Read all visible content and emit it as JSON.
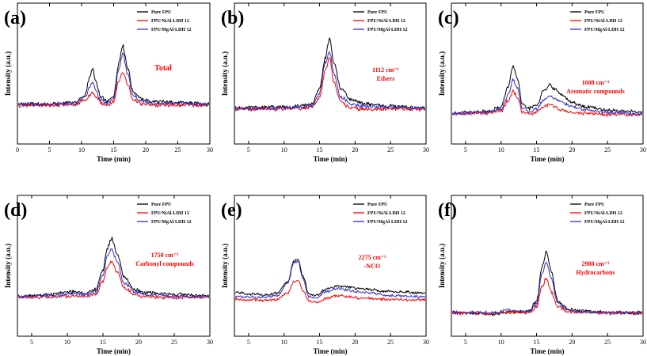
{
  "colors": {
    "pure": "#000000",
    "niai": "#ff0000",
    "mgai": "#3333cc",
    "annotation": "#ff0000"
  },
  "chart_data": [
    {
      "type": "line",
      "panel": "(a)",
      "xlabel": "Time (min)",
      "ylabel": "Intensity (a.u.)",
      "xlim": [
        0,
        30
      ],
      "xticks": [
        "0",
        "5",
        "10",
        "15",
        "20",
        "25",
        "30"
      ],
      "annotation": [
        "Total"
      ],
      "legend": [
        "Pure FPU",
        "FPU/NiAl-LDH 12",
        "FPU/MgAl-LDH 12"
      ],
      "series": [
        {
          "name": "Pure FPU",
          "color": "#000000",
          "x": [
            0,
            5,
            9,
            10.5,
            11.3,
            11.7,
            12.2,
            13,
            14,
            15,
            15.8,
            16.4,
            17.2,
            18,
            19.5,
            21,
            25,
            30
          ],
          "y": [
            0.01,
            0.01,
            0.03,
            0.1,
            0.3,
            0.4,
            0.25,
            0.08,
            0.04,
            0.1,
            0.45,
            0.65,
            0.4,
            0.15,
            0.06,
            0.04,
            0.03,
            0.01
          ]
        },
        {
          "name": "FPU/NiAl-LDH 12",
          "color": "#ff0000",
          "x": [
            0,
            5,
            9,
            10.5,
            11.3,
            11.7,
            12.2,
            13,
            14,
            15,
            15.8,
            16.4,
            17.2,
            18,
            19.5,
            21,
            25,
            30
          ],
          "y": [
            0.0,
            0.0,
            0.01,
            0.05,
            0.11,
            0.14,
            0.09,
            0.02,
            0.0,
            0.04,
            0.25,
            0.36,
            0.22,
            0.06,
            0.01,
            0.0,
            0.0,
            0.0
          ]
        },
        {
          "name": "FPU/MgAl-LDH 12",
          "color": "#3333cc",
          "x": [
            0,
            5,
            9,
            10.5,
            11.3,
            11.7,
            12.2,
            13,
            14,
            15,
            15.8,
            16.4,
            17.2,
            18,
            19.5,
            21,
            25,
            30
          ],
          "y": [
            0.01,
            0.01,
            0.02,
            0.08,
            0.2,
            0.25,
            0.16,
            0.05,
            0.02,
            0.07,
            0.38,
            0.55,
            0.33,
            0.1,
            0.04,
            0.02,
            0.02,
            0.01
          ]
        }
      ]
    },
    {
      "type": "line",
      "panel": "(b)",
      "xlabel": "Time (min)",
      "ylabel": "Intensity (a.u.)",
      "xlim": [
        3,
        30
      ],
      "xticks": [
        "5",
        "10",
        "15",
        "20",
        "25",
        "30"
      ],
      "annotation": [
        "1112 cm⁻¹",
        "Ethers"
      ],
      "legend": [
        "Pure FPU",
        "FPU/NiAl-LDH 12",
        "FPU/MgAl-LDH 12"
      ],
      "series": [
        {
          "name": "Pure FPU",
          "color": "#000000",
          "x": [
            3,
            8,
            12,
            14,
            15,
            15.8,
            16.4,
            17,
            18,
            19.5,
            21,
            25,
            30
          ],
          "y": [
            0.01,
            0.02,
            0.03,
            0.06,
            0.22,
            0.55,
            0.75,
            0.5,
            0.22,
            0.1,
            0.06,
            0.03,
            0.01
          ]
        },
        {
          "name": "FPU/NiAl-LDH 12",
          "color": "#ff0000",
          "x": [
            3,
            8,
            12,
            14,
            15,
            15.8,
            16.4,
            17,
            18,
            19.5,
            21,
            25,
            30
          ],
          "y": [
            0.0,
            0.0,
            0.01,
            0.02,
            0.12,
            0.42,
            0.55,
            0.3,
            0.07,
            0.01,
            0.0,
            0.0,
            0.0
          ]
        },
        {
          "name": "FPU/MgAl-LDH 12",
          "color": "#3333cc",
          "x": [
            3,
            8,
            12,
            14,
            15,
            15.8,
            16.4,
            17,
            18,
            19.5,
            21,
            25,
            30
          ],
          "y": [
            0.01,
            0.01,
            0.02,
            0.04,
            0.17,
            0.5,
            0.62,
            0.38,
            0.13,
            0.05,
            0.03,
            0.02,
            0.01
          ]
        }
      ]
    },
    {
      "type": "line",
      "panel": "(c)",
      "xlabel": "Time (min)",
      "ylabel": "Intensity (a.u.)",
      "xlim": [
        3,
        30
      ],
      "xticks": [
        "5",
        "10",
        "15",
        "20",
        "25",
        "30"
      ],
      "annotation": [
        "1608 cm⁻¹",
        "Aromatic compounds"
      ],
      "legend": [
        "Pure FPU",
        "FPU/NiAl-LDH 12",
        "FPU/MgAl-LDH 12"
      ],
      "series": [
        {
          "name": "Pure FPU",
          "color": "#000000",
          "x": [
            3,
            8,
            10,
            11,
            11.7,
            12.3,
            13,
            14,
            15,
            16,
            16.8,
            17.5,
            18.5,
            20,
            22,
            25,
            30
          ],
          "y": [
            0.02,
            0.04,
            0.1,
            0.35,
            0.62,
            0.45,
            0.12,
            0.08,
            0.12,
            0.3,
            0.38,
            0.33,
            0.25,
            0.15,
            0.1,
            0.06,
            0.03
          ]
        },
        {
          "name": "FPU/NiAl-LDH 12",
          "color": "#ff0000",
          "x": [
            3,
            8,
            10,
            11,
            11.7,
            12.3,
            13,
            14,
            15,
            16,
            16.8,
            17.5,
            18.5,
            20,
            22,
            25,
            30
          ],
          "y": [
            0.01,
            0.02,
            0.05,
            0.18,
            0.3,
            0.22,
            0.04,
            0.0,
            0.03,
            0.1,
            0.13,
            0.1,
            0.06,
            0.03,
            0.02,
            0.0,
            0.0
          ]
        },
        {
          "name": "FPU/MgAl-LDH 12",
          "color": "#3333cc",
          "x": [
            3,
            8,
            10,
            11,
            11.7,
            12.3,
            13,
            14,
            15,
            16,
            16.8,
            17.5,
            18.5,
            20,
            22,
            25,
            30
          ],
          "y": [
            0.01,
            0.03,
            0.07,
            0.25,
            0.45,
            0.33,
            0.08,
            0.04,
            0.07,
            0.19,
            0.24,
            0.21,
            0.16,
            0.1,
            0.06,
            0.03,
            0.01
          ]
        }
      ]
    },
    {
      "type": "line",
      "panel": "(d)",
      "xlabel": "Time (min)",
      "ylabel": "Intensity (a.u.)",
      "xlim": [
        3,
        30
      ],
      "xticks": [
        "5",
        "10",
        "15",
        "20",
        "25",
        "30"
      ],
      "annotation": [
        "1750 cm⁻¹",
        "Carbonyl compounds"
      ],
      "legend": [
        "Pure FPU",
        "FPU/NiAl-LDH 12",
        "FPU/MgAl-LDH 12"
      ],
      "series": [
        {
          "name": "Pure FPU",
          "color": "#000000",
          "x": [
            3,
            7,
            9,
            11,
            12.5,
            14,
            15,
            15.6,
            16.2,
            17,
            18,
            19.5,
            21,
            25,
            30
          ],
          "y": [
            0.02,
            0.03,
            0.06,
            0.08,
            0.05,
            0.1,
            0.35,
            0.62,
            0.75,
            0.55,
            0.25,
            0.1,
            0.06,
            0.04,
            0.02
          ]
        },
        {
          "name": "FPU/NiAl-LDH 12",
          "color": "#ff0000",
          "x": [
            3,
            7,
            9,
            11,
            12.5,
            14,
            15,
            15.6,
            16.2,
            17,
            18,
            19.5,
            21,
            25,
            30
          ],
          "y": [
            0.0,
            0.0,
            0.01,
            0.02,
            0.01,
            0.04,
            0.2,
            0.38,
            0.45,
            0.32,
            0.12,
            0.03,
            0.01,
            0.0,
            0.0
          ]
        },
        {
          "name": "FPU/MgAl-LDH 12",
          "color": "#3333cc",
          "x": [
            3,
            7,
            9,
            11,
            12.5,
            14,
            15,
            15.6,
            16.2,
            17,
            18,
            19.5,
            21,
            25,
            30
          ],
          "y": [
            0.01,
            0.02,
            0.03,
            0.05,
            0.03,
            0.07,
            0.28,
            0.52,
            0.62,
            0.44,
            0.18,
            0.07,
            0.03,
            0.02,
            0.01
          ]
        }
      ]
    },
    {
      "type": "line",
      "panel": "(e)",
      "xlabel": "Time (min)",
      "ylabel": "Intensity (a.u.)",
      "xlim": [
        3,
        30
      ],
      "xticks": [
        "5",
        "10",
        "15",
        "20",
        "25",
        "30"
      ],
      "annotation": [
        "2275 cm⁻¹",
        "-NCO"
      ],
      "legend": [
        "Pure FPU",
        "FPU/NiAl-LDH 12",
        "FPU/MgAl-LDH 12"
      ],
      "series": [
        {
          "name": "Pure FPU",
          "color": "#000000",
          "x": [
            3,
            7,
            9,
            10.5,
            11.4,
            12,
            12.6,
            13.5,
            14.5,
            16,
            17.5,
            19,
            21,
            25,
            30
          ],
          "y": [
            0.14,
            0.11,
            0.13,
            0.3,
            0.62,
            0.64,
            0.4,
            0.12,
            0.1,
            0.2,
            0.24,
            0.22,
            0.2,
            0.16,
            0.14
          ]
        },
        {
          "name": "FPU/NiAl-LDH 12",
          "color": "#ff0000",
          "x": [
            3,
            7,
            9,
            10.5,
            11.4,
            12,
            12.6,
            13.5,
            14.5,
            16,
            17.5,
            19,
            21,
            25,
            30
          ],
          "y": [
            0.04,
            0.03,
            0.04,
            0.14,
            0.3,
            0.32,
            0.18,
            0.02,
            0.0,
            0.06,
            0.1,
            0.08,
            0.06,
            0.04,
            0.03
          ]
        },
        {
          "name": "FPU/MgAl-LDH 12",
          "color": "#3333cc",
          "x": [
            3,
            7,
            9,
            10.5,
            11.4,
            12,
            12.6,
            13.5,
            14.5,
            16,
            17.5,
            19,
            21,
            25,
            30
          ],
          "y": [
            0.08,
            0.07,
            0.09,
            0.28,
            0.6,
            0.6,
            0.36,
            0.08,
            0.06,
            0.16,
            0.2,
            0.18,
            0.15,
            0.1,
            0.08
          ]
        }
      ]
    },
    {
      "type": "line",
      "panel": "(f)",
      "xlabel": "Time (min)",
      "ylabel": "Intensity (a.u.)",
      "xlim": [
        3,
        30
      ],
      "xticks": [
        "5",
        "10",
        "15",
        "20",
        "25",
        "30"
      ],
      "annotation": [
        "2980 cm⁻¹",
        "Hydrocarbons"
      ],
      "legend": [
        "Pure FPU",
        "FPU/NiAl-LDH 12",
        "FPU/MgAl-LDH 12"
      ],
      "series": [
        {
          "name": "Pure FPU",
          "color": "#000000",
          "x": [
            3,
            7,
            9,
            11,
            12.5,
            14,
            15,
            15.8,
            16.4,
            17,
            18,
            19.5,
            21,
            25,
            30
          ],
          "y": [
            0.01,
            0.0,
            -0.01,
            0.02,
            0.01,
            0.03,
            0.15,
            0.6,
            0.78,
            0.55,
            0.15,
            0.05,
            0.03,
            0.01,
            0.0
          ]
        },
        {
          "name": "FPU/NiAl-LDH 12",
          "color": "#ff0000",
          "x": [
            3,
            7,
            9,
            11,
            12.5,
            14,
            15,
            15.8,
            16.4,
            17,
            18,
            19.5,
            21,
            25,
            30
          ],
          "y": [
            0.0,
            0.0,
            0.0,
            0.01,
            0.01,
            0.01,
            0.08,
            0.35,
            0.45,
            0.28,
            0.08,
            0.02,
            0.01,
            0.0,
            0.0
          ]
        },
        {
          "name": "FPU/MgAl-LDH 12",
          "color": "#3333cc",
          "x": [
            3,
            7,
            9,
            11,
            12.5,
            14,
            15,
            15.8,
            16.4,
            17,
            18,
            19.5,
            21,
            25,
            30
          ],
          "y": [
            0.01,
            0.01,
            0.01,
            0.04,
            0.03,
            0.02,
            0.12,
            0.5,
            0.65,
            0.45,
            0.12,
            0.04,
            0.02,
            0.01,
            0.01
          ]
        }
      ]
    }
  ]
}
